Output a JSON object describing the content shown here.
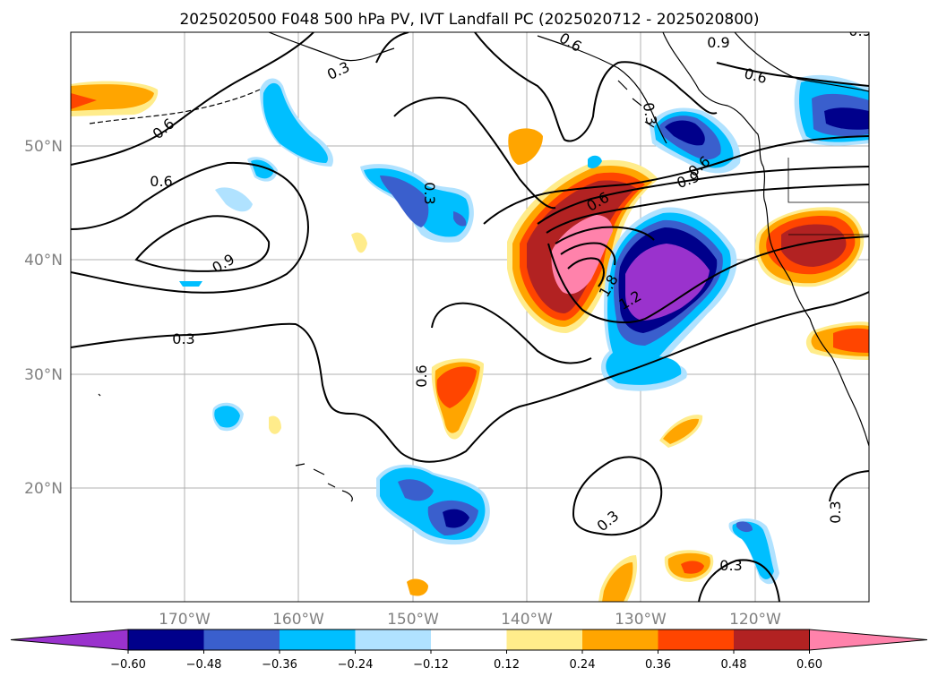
{
  "title": "2025020500 F048 500 hPa PV, IVT Landfall PC (2025020712 - 2025020800)",
  "map": {
    "projection": "PlateCarree",
    "lon_range": [
      -180,
      -110
    ],
    "lat_range": [
      10,
      60
    ],
    "gridlines": true,
    "lat_labels": [
      "50°N",
      "40°N",
      "30°N",
      "20°N"
    ],
    "lon_labels": [
      "170°W",
      "160°W",
      "150°W",
      "140°W",
      "130°W",
      "120°W"
    ]
  },
  "contour_labels": [
    "0.3",
    "0.6",
    "0.9",
    "0.6",
    "0.9",
    "0.6",
    "0.3",
    "0.6",
    "0.9",
    "0.3",
    "0.6",
    "0.3",
    "0.3",
    "1.2",
    "1.8",
    "0.9",
    "0.6",
    "0.3",
    "0.3",
    "0.6"
  ],
  "colorbar": {
    "extend": "both",
    "ticks": [
      "−0.60",
      "−0.48",
      "−0.36",
      "−0.24",
      "−0.12",
      "0.12",
      "0.24",
      "0.36",
      "0.48",
      "0.60"
    ],
    "colors": [
      "#9a32cd",
      "#00008b",
      "#3a5fcd",
      "#00bfff",
      "#b0e2ff",
      "#ffffff",
      "#ffec8b",
      "#ffa500",
      "#ff4500",
      "#b22222",
      "#ff82ab"
    ]
  },
  "chart_data": {
    "type": "map",
    "fields": [
      "500 hPa PV (black contours)",
      "IVT Landfall PC (filled)"
    ],
    "levels": [
      -0.6,
      -0.48,
      -0.36,
      -0.24,
      -0.12,
      0.12,
      0.24,
      0.36,
      0.48,
      0.6
    ]
  }
}
